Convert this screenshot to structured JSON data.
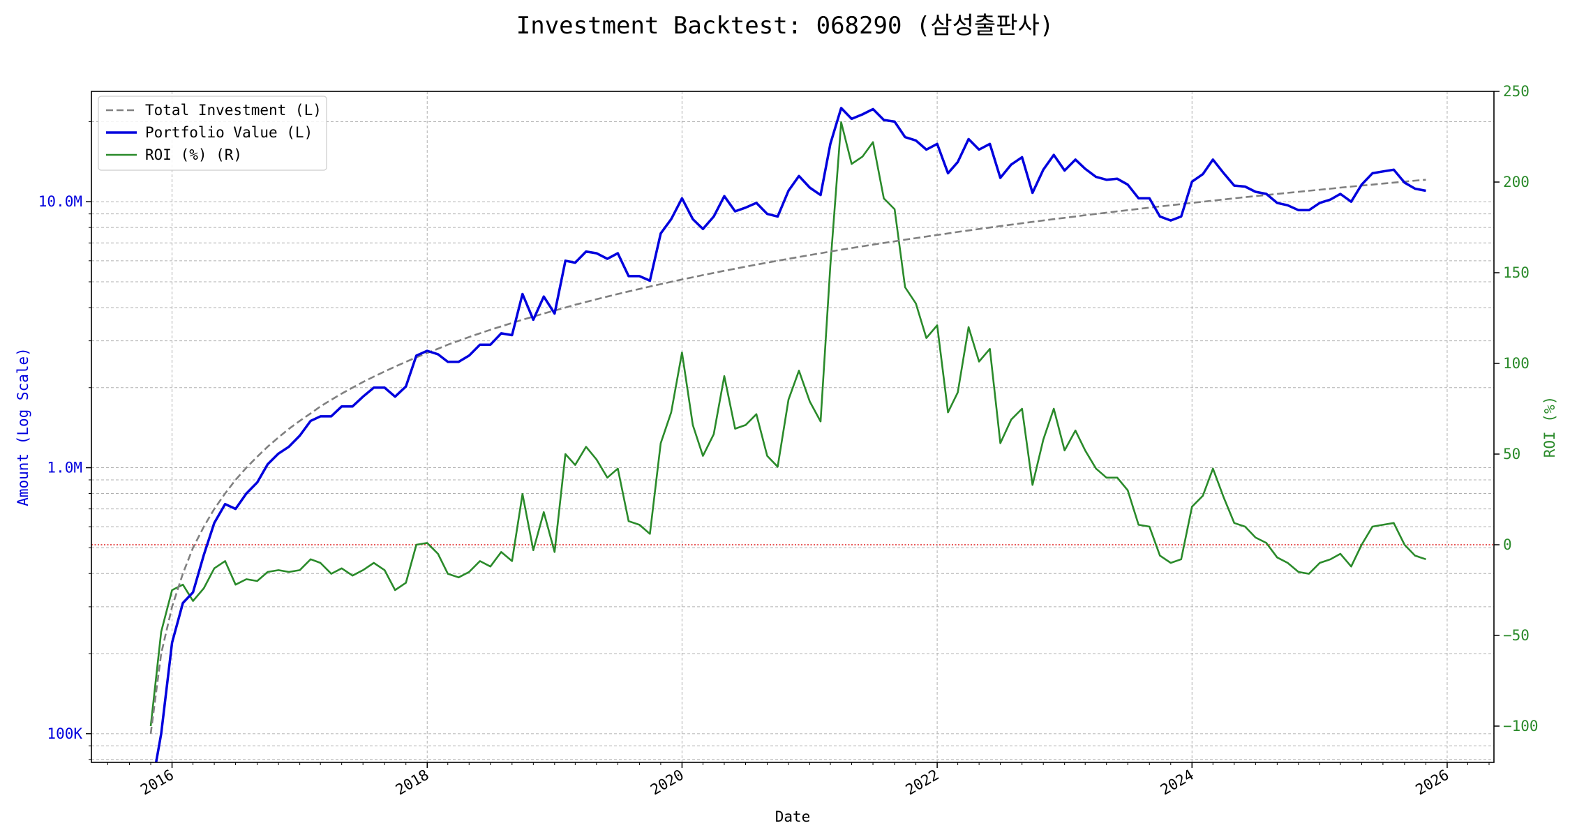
{
  "chart_data": {
    "type": "line",
    "title": "Investment Backtest: 068290 (삼성출판사)",
    "xlabel": "Date",
    "ylabel_left": "Amount (Log Scale)",
    "ylabel_right": "ROI (%)",
    "left_scale": "log",
    "ylim_left": [
      78000,
      26000000
    ],
    "ylim_right": [
      -120,
      250
    ],
    "xlim": [
      "2015-05-15",
      "2026-05-15"
    ],
    "grid": true,
    "legend_position": "top-left",
    "x_ticks": [
      {
        "date": "2016-01-01",
        "label": "2016"
      },
      {
        "date": "2018-01-01",
        "label": "2018"
      },
      {
        "date": "2020-01-01",
        "label": "2020"
      },
      {
        "date": "2022-01-01",
        "label": "2022"
      },
      {
        "date": "2024-01-01",
        "label": "2024"
      },
      {
        "date": "2026-01-01",
        "label": "2026"
      }
    ],
    "y_ticks_left": [
      {
        "value": 100000,
        "label": "100K"
      },
      {
        "value": 1000000,
        "label": "1.0M"
      },
      {
        "value": 10000000,
        "label": "10.0M"
      }
    ],
    "y_ticks_right": [
      {
        "value": -100,
        "label": "−100"
      },
      {
        "value": -50,
        "label": "−50"
      },
      {
        "value": 0,
        "label": "0"
      },
      {
        "value": 50,
        "label": "50"
      },
      {
        "value": 100,
        "label": "100"
      },
      {
        "value": 150,
        "label": "150"
      },
      {
        "value": 200,
        "label": "200"
      },
      {
        "value": 250,
        "label": "250"
      }
    ],
    "reference_line": {
      "axis": "right",
      "value": 0,
      "color": "#e02020"
    },
    "x": [
      "2015-11-01",
      "2015-12-01",
      "2016-01-01",
      "2016-02-01",
      "2016-03-01",
      "2016-04-01",
      "2016-05-01",
      "2016-06-01",
      "2016-07-01",
      "2016-08-01",
      "2016-09-01",
      "2016-10-01",
      "2016-11-01",
      "2016-12-01",
      "2017-01-01",
      "2017-02-01",
      "2017-03-01",
      "2017-04-01",
      "2017-05-01",
      "2017-06-01",
      "2017-07-01",
      "2017-08-01",
      "2017-09-01",
      "2017-10-01",
      "2017-11-01",
      "2017-12-01",
      "2018-01-01",
      "2018-02-01",
      "2018-03-01",
      "2018-04-01",
      "2018-05-01",
      "2018-06-01",
      "2018-07-01",
      "2018-08-01",
      "2018-09-01",
      "2018-10-01",
      "2018-11-01",
      "2018-12-01",
      "2019-01-01",
      "2019-02-01",
      "2019-03-01",
      "2019-04-01",
      "2019-05-01",
      "2019-06-01",
      "2019-07-01",
      "2019-08-01",
      "2019-09-01",
      "2019-10-01",
      "2019-11-01",
      "2019-12-01",
      "2020-01-01",
      "2020-02-01",
      "2020-03-01",
      "2020-04-01",
      "2020-05-01",
      "2020-06-01",
      "2020-07-01",
      "2020-08-01",
      "2020-09-01",
      "2020-10-01",
      "2020-11-01",
      "2020-12-01",
      "2021-01-01",
      "2021-02-01",
      "2021-03-01",
      "2021-04-01",
      "2021-05-01",
      "2021-06-01",
      "2021-07-01",
      "2021-08-01",
      "2021-09-01",
      "2021-10-01",
      "2021-11-01",
      "2021-12-01",
      "2022-01-01",
      "2022-02-01",
      "2022-03-01",
      "2022-04-01",
      "2022-05-01",
      "2022-06-01",
      "2022-07-01",
      "2022-08-01",
      "2022-09-01",
      "2022-10-01",
      "2022-11-01",
      "2022-12-01",
      "2023-01-01",
      "2023-02-01",
      "2023-03-01",
      "2023-04-01",
      "2023-05-01",
      "2023-06-01",
      "2023-07-01",
      "2023-08-01",
      "2023-09-01",
      "2023-10-01",
      "2023-11-01",
      "2023-12-01",
      "2024-01-01",
      "2024-02-01",
      "2024-03-01",
      "2024-04-01",
      "2024-05-01",
      "2024-06-01",
      "2024-07-01",
      "2024-08-01",
      "2024-09-01",
      "2024-10-01",
      "2024-11-01",
      "2024-12-01",
      "2025-01-01",
      "2025-02-01",
      "2025-03-01",
      "2025-04-01",
      "2025-05-01",
      "2025-06-01",
      "2025-07-01",
      "2025-08-01",
      "2025-09-01",
      "2025-10-01",
      "2025-11-01"
    ],
    "series": [
      {
        "name": "Total Investment (L)",
        "axis": "left",
        "color": "#808080",
        "style": "dashed",
        "values": [
          100000,
          200000,
          300000,
          400000,
          500000,
          600000,
          700000,
          800000,
          900000,
          1000000,
          1100000,
          1200000,
          1300000,
          1400000,
          1500000,
          1600000,
          1700000,
          1800000,
          1900000,
          2000000,
          2100000,
          2200000,
          2300000,
          2400000,
          2500000,
          2600000,
          2700000,
          2800000,
          2900000,
          3000000,
          3100000,
          3200000,
          3300000,
          3400000,
          3500000,
          3600000,
          3700000,
          3800000,
          3900000,
          4000000,
          4100000,
          4200000,
          4300000,
          4400000,
          4500000,
          4600000,
          4700000,
          4800000,
          4900000,
          5000000,
          5100000,
          5200000,
          5300000,
          5400000,
          5500000,
          5600000,
          5700000,
          5800000,
          5900000,
          6000000,
          6100000,
          6200000,
          6300000,
          6400000,
          6500000,
          6600000,
          6700000,
          6800000,
          6900000,
          7000000,
          7100000,
          7200000,
          7300000,
          7400000,
          7500000,
          7600000,
          7700000,
          7800000,
          7900000,
          8000000,
          8100000,
          8200000,
          8300000,
          8400000,
          8500000,
          8600000,
          8700000,
          8800000,
          8900000,
          9000000,
          9100000,
          9200000,
          9300000,
          9400000,
          9500000,
          9600000,
          9700000,
          9800000,
          9900000,
          10000000,
          10100000,
          10200000,
          10300000,
          10400000,
          10500000,
          10600000,
          10700000,
          10800000,
          10900000,
          11000000,
          11100000,
          11200000,
          11300000,
          11400000,
          11500000,
          11600000,
          11700000,
          11800000,
          11900000,
          12000000,
          12100000
        ]
      },
      {
        "name": "Portfolio Value (L)",
        "axis": "left",
        "color": "#0000dd",
        "style": "solid",
        "values": [
          60000,
          100000,
          220000,
          310000,
          340000,
          470000,
          620000,
          730000,
          700000,
          800000,
          880000,
          1030000,
          1130000,
          1200000,
          1320000,
          1500000,
          1560000,
          1560000,
          1700000,
          1700000,
          1850000,
          2000000,
          2000000,
          1850000,
          2020000,
          2640000,
          2750000,
          2670000,
          2500000,
          2500000,
          2640000,
          2900000,
          2900000,
          3200000,
          3150000,
          4500000,
          3600000,
          4400000,
          3800000,
          6000000,
          5900000,
          6500000,
          6400000,
          6100000,
          6400000,
          5250000,
          5250000,
          5050000,
          7600000,
          8600000,
          10300000,
          8600000,
          7900000,
          8800000,
          10500000,
          9200000,
          9500000,
          9900000,
          9000000,
          8800000,
          11000000,
          12500000,
          11300000,
          10600000,
          16500000,
          22500000,
          20500000,
          21300000,
          22300000,
          20300000,
          20000000,
          17500000,
          17000000,
          15700000,
          16500000,
          12800000,
          14100000,
          17200000,
          15700000,
          16500000,
          12300000,
          13800000,
          14700000,
          10800000,
          13200000,
          15000000,
          13100000,
          14400000,
          13300000,
          12400000,
          12100000,
          12200000,
          11600000,
          10300000,
          10300000,
          8800000,
          8500000,
          8800000,
          11900000,
          12700000,
          14400000,
          12800000,
          11500000,
          11400000,
          10900000,
          10700000,
          9900000,
          9700000,
          9300000,
          9300000,
          9900000,
          10200000,
          10700000,
          10000000,
          11600000,
          12800000,
          13000000,
          13200000,
          11800000,
          11200000,
          11000000
        ]
      },
      {
        "name": "ROI (%) (R)",
        "axis": "right",
        "color": "#2a8a2a",
        "style": "solid",
        "values": [
          -100,
          -48,
          -25,
          -22,
          -31,
          -24,
          -13,
          -9,
          -22,
          -19,
          -20,
          -15,
          -14,
          -15,
          -14,
          -8,
          -10,
          -16,
          -13,
          -17,
          -14,
          -10,
          -14,
          -25,
          -21,
          0,
          1,
          -5,
          -16,
          -18,
          -15,
          -9,
          -12,
          -4,
          -9,
          28,
          -3,
          18,
          -4,
          50,
          44,
          54,
          47,
          37,
          42,
          13,
          11,
          6,
          56,
          73,
          106,
          66,
          49,
          61,
          93,
          64,
          66,
          72,
          49,
          43,
          80,
          96,
          79,
          68,
          154,
          233,
          210,
          214,
          222,
          191,
          185,
          142,
          133,
          114,
          121,
          73,
          84,
          120,
          101,
          108,
          56,
          69,
          75,
          33,
          58,
          75,
          52,
          63,
          52,
          42,
          37,
          37,
          30,
          11,
          10,
          -6,
          -10,
          -8,
          21,
          27,
          42,
          26,
          12,
          10,
          4,
          1,
          -7,
          -10,
          -15,
          -16,
          -10,
          -8,
          -5,
          -12,
          0,
          10,
          11,
          12,
          0,
          -6,
          -8
        ]
      }
    ]
  }
}
